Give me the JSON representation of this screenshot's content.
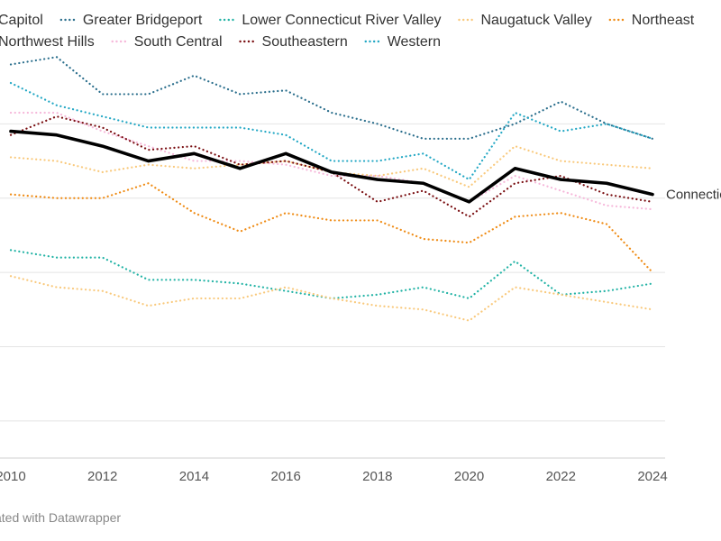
{
  "chart_data": {
    "type": "line",
    "x": [
      2010,
      2011,
      2012,
      2013,
      2014,
      2015,
      2016,
      2017,
      2018,
      2019,
      2020,
      2021,
      2022,
      2023,
      2024
    ],
    "xlim": [
      2010,
      2024
    ],
    "ylim": [
      0,
      11
    ],
    "x_ticks": [
      2010,
      2012,
      2014,
      2016,
      2018,
      2020,
      2022,
      2024
    ],
    "grid": true,
    "legend_position": "top",
    "title": "",
    "xlabel": "",
    "ylabel": "",
    "series": [
      {
        "name": "Capitol",
        "color": "#2a6e8c",
        "dash": true,
        "values": [
          null,
          null,
          null,
          null,
          null,
          null,
          null,
          null,
          null,
          null,
          null,
          null,
          null,
          null,
          null
        ]
      },
      {
        "name": "Greater Bridgeport",
        "color": "#2a6e8c",
        "dash": true,
        "values": [
          10.6,
          10.8,
          9.8,
          9.8,
          10.3,
          9.8,
          9.9,
          9.3,
          9.0,
          8.6,
          8.6,
          9.0,
          9.6,
          9.0,
          8.6
        ]
      },
      {
        "name": "Lower Connecticut River Valley",
        "color": "#22b3a5",
        "dash": true,
        "values": [
          5.6,
          5.4,
          5.4,
          4.8,
          4.8,
          4.7,
          4.5,
          4.3,
          4.4,
          4.6,
          4.3,
          5.3,
          4.4,
          4.5,
          4.7
        ]
      },
      {
        "name": "Naugatuck Valley",
        "color": "#f9c97c",
        "dash": true,
        "values": [
          4.9,
          4.6,
          4.5,
          4.1,
          4.3,
          4.3,
          4.6,
          4.3,
          4.1,
          4.0,
          3.7,
          4.6,
          4.4,
          4.2,
          4.0
        ]
      },
      {
        "name": "Northeast",
        "color": "#ef8b14",
        "dash": true,
        "values": [
          7.1,
          7.0,
          7.0,
          7.4,
          6.6,
          6.1,
          6.6,
          6.4,
          6.4,
          5.9,
          5.8,
          6.5,
          6.6,
          6.3,
          5.0
        ]
      },
      {
        "name": "Northwest Hills",
        "color": "#f9c97c",
        "dash": true,
        "values": [
          8.1,
          8.0,
          7.7,
          7.9,
          7.8,
          7.9,
          8.0,
          7.7,
          7.6,
          7.8,
          7.3,
          8.4,
          8.0,
          7.9,
          7.8
        ]
      },
      {
        "name": "South Central",
        "color": "#f6b8da",
        "dash": true,
        "values": [
          9.3,
          9.3,
          8.8,
          8.4,
          8.0,
          8.0,
          7.9,
          7.6,
          7.6,
          7.4,
          6.9,
          7.6,
          7.2,
          6.8,
          6.7
        ]
      },
      {
        "name": "Southeastern",
        "color": "#7a0f12",
        "dash": true,
        "values": [
          8.7,
          9.2,
          8.9,
          8.3,
          8.4,
          7.9,
          8.0,
          7.7,
          6.9,
          7.2,
          6.5,
          7.4,
          7.6,
          7.1,
          6.9
        ]
      },
      {
        "name": "Western",
        "color": "#22a7c4",
        "dash": true,
        "values": [
          10.1,
          9.5,
          9.2,
          8.9,
          8.9,
          8.9,
          8.7,
          8.0,
          8.0,
          8.2,
          7.5,
          9.3,
          8.8,
          9.0,
          8.6
        ]
      },
      {
        "name": "Connecticut",
        "color": "#000000",
        "dash": false,
        "bold": true,
        "show_in_legend": false,
        "values": [
          8.8,
          8.7,
          8.4,
          8.0,
          8.2,
          7.8,
          8.2,
          7.7,
          7.5,
          7.4,
          6.9,
          7.8,
          7.5,
          7.4,
          7.1
        ]
      }
    ]
  },
  "footer_text": "Chart: ... • Created with Datawrapper",
  "footer_visible": "ated with Datawrapper",
  "end_label": "Connecticut"
}
